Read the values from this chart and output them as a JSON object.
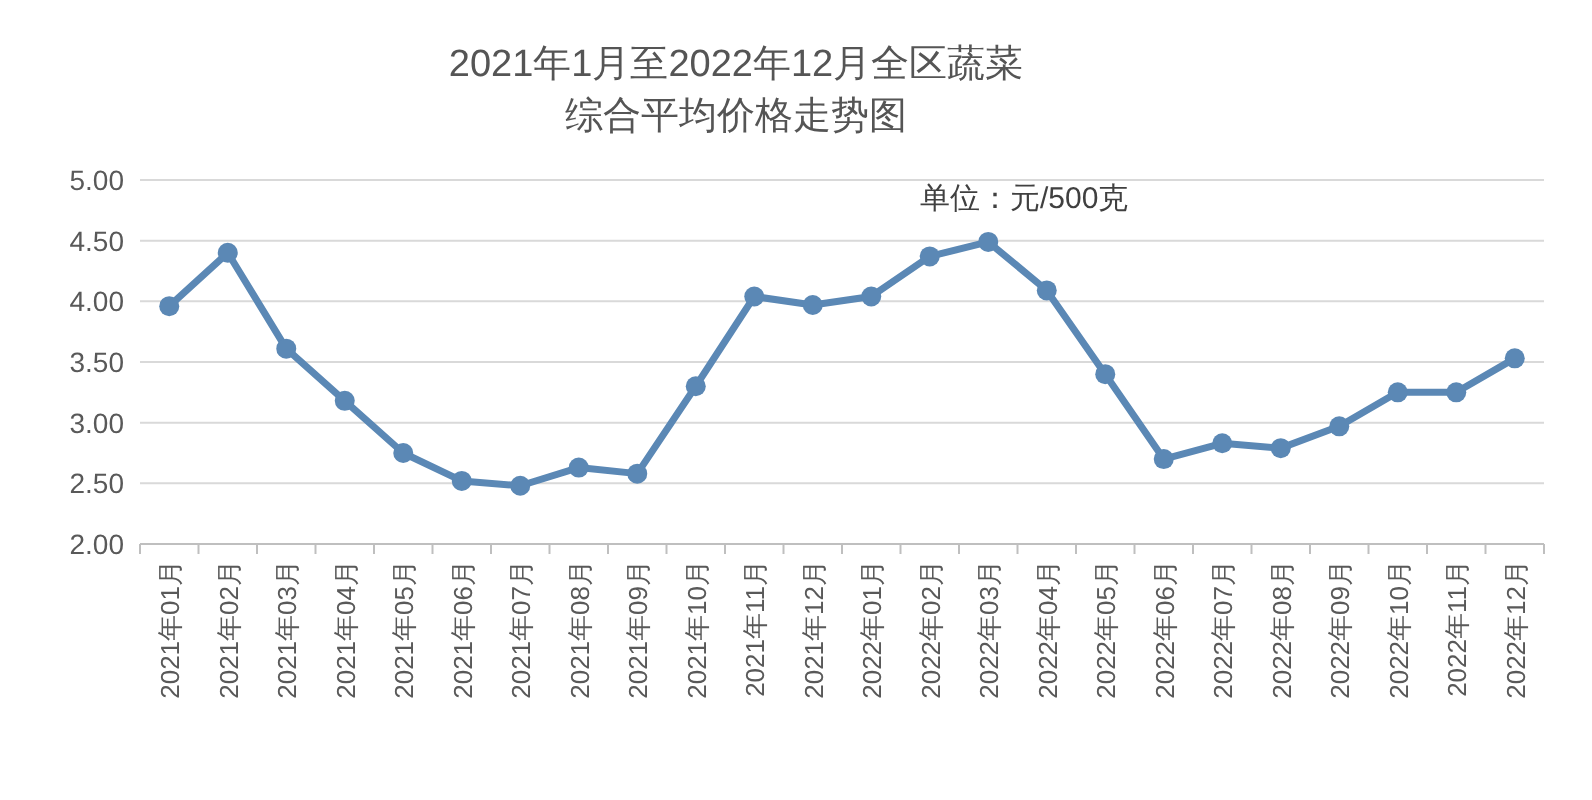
{
  "chart_data": {
    "type": "line",
    "title": "2021年1月至2022年12月全区蔬菜综合平均价格走势图",
    "annotations": [
      "单位：元/500克"
    ],
    "categories": [
      "2021年01月",
      "2021年02月",
      "2021年03月",
      "2021年04月",
      "2021年05月",
      "2021年06月",
      "2021年07月",
      "2021年08月",
      "2021年09月",
      "2021年10月",
      "2021年11月",
      "2021年12月",
      "2022年01月",
      "2022年02月",
      "2022年03月",
      "2022年04月",
      "2022年05月",
      "2022年06月",
      "2022年07月",
      "2022年08月",
      "2022年09月",
      "2022年10月",
      "2022年11月",
      "2022年12月"
    ],
    "series": [
      {
        "color": "#5b88b5",
        "values": [
          3.96,
          4.4,
          3.61,
          3.18,
          2.75,
          2.52,
          2.48,
          2.63,
          2.58,
          3.3,
          4.04,
          3.97,
          4.04,
          4.37,
          4.49,
          4.09,
          3.4,
          2.7,
          2.83,
          2.79,
          2.97,
          3.25,
          3.25,
          3.53
        ]
      }
    ],
    "ylim": [
      2,
      5
    ],
    "yticks": [
      {
        "value": 2,
        "label": "2.00"
      },
      {
        "value": 2.5,
        "label": "2.50"
      },
      {
        "value": 3,
        "label": "3.00"
      },
      {
        "value": 3.5,
        "label": "3.50"
      },
      {
        "value": 4,
        "label": "4.00"
      },
      {
        "value": 4.5,
        "label": "4.50"
      },
      {
        "value": 5,
        "label": "5.00"
      }
    ],
    "grid": "y",
    "marker": "circle",
    "line_style": "solid"
  }
}
